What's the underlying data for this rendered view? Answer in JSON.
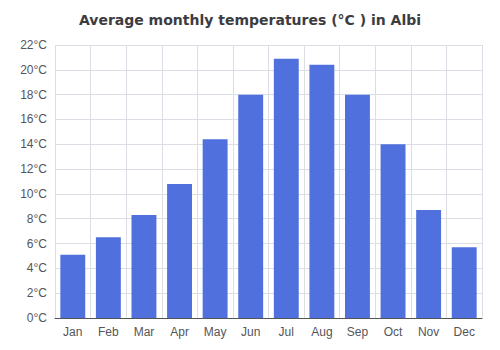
{
  "chart_data": {
    "type": "bar",
    "title": "Average monthly temperatures (°C ) in Albi",
    "categories": [
      "Jan",
      "Feb",
      "Mar",
      "Apr",
      "May",
      "Jun",
      "Jul",
      "Aug",
      "Sep",
      "Oct",
      "Nov",
      "Dec"
    ],
    "values": [
      5.1,
      6.5,
      8.3,
      10.8,
      14.4,
      18.0,
      20.9,
      20.4,
      18.0,
      14.0,
      8.7,
      5.7
    ],
    "ylim": [
      0,
      22
    ],
    "yticks": [
      {
        "value": 0,
        "label": "0°C"
      },
      {
        "value": 2,
        "label": "2°C"
      },
      {
        "value": 4,
        "label": "4°C"
      },
      {
        "value": 6,
        "label": "6°C"
      },
      {
        "value": 8,
        "label": "8°C"
      },
      {
        "value": 10,
        "label": "10°C"
      },
      {
        "value": 12,
        "label": "12°C"
      },
      {
        "value": 14,
        "label": "14°C"
      },
      {
        "value": 16,
        "label": "16°C"
      },
      {
        "value": 18,
        "label": "18°C"
      },
      {
        "value": 20,
        "label": "20°C"
      },
      {
        "value": 22,
        "label": "22°C"
      }
    ],
    "grid": true
  }
}
